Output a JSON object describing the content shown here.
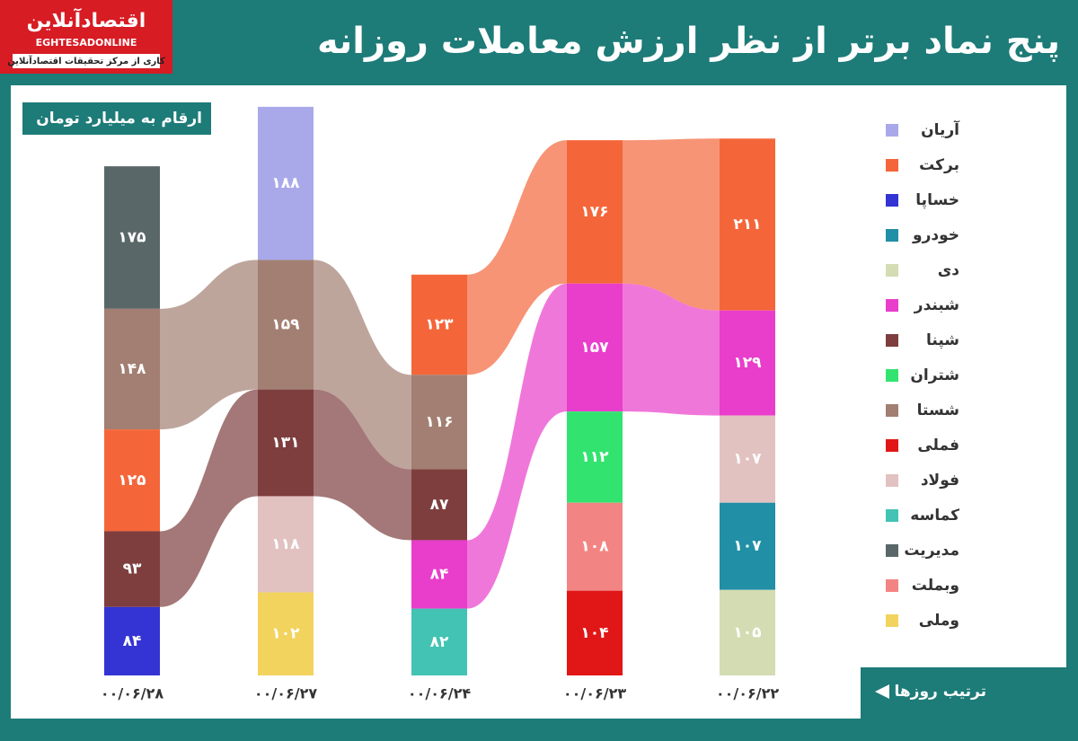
{
  "chart_data": {
    "type": "stacked-flow",
    "title": "پنج نماد برتر از نظر ارزش معاملات روزانه",
    "subtitle": "ارقام به میلیارد تومان",
    "logo": {
      "name": "اقتصادآنلاین",
      "latin": "EGHTESADONLINE",
      "tagline": "کاری از مرکز تحقیقات اقتصادآنلاین"
    },
    "order_note": "ترتیب روزها",
    "legend": [
      {
        "name": "آریان",
        "color": "#a9a9ea"
      },
      {
        "name": "برکت",
        "color": "#f4663a"
      },
      {
        "name": "خساپا",
        "color": "#3434d4"
      },
      {
        "name": "خودرو",
        "color": "#218fa6"
      },
      {
        "name": "دی",
        "color": "#d3dcb2"
      },
      {
        "name": "شبندر",
        "color": "#e93dcb"
      },
      {
        "name": "شپنا",
        "color": "#7e3e3e"
      },
      {
        "name": "شتران",
        "color": "#33e36f"
      },
      {
        "name": "شستا",
        "color": "#a27f72"
      },
      {
        "name": "فملی",
        "color": "#e11616"
      },
      {
        "name": "فولاد",
        "color": "#e1c2c0"
      },
      {
        "name": "کماسه",
        "color": "#42c3b3"
      },
      {
        "name": "مدیریت",
        "color": "#5a6769"
      },
      {
        "name": "وبملت",
        "color": "#f38484"
      },
      {
        "name": "وملی",
        "color": "#f2d35e"
      }
    ],
    "columns": [
      {
        "date": "۰۰/۰۶/۲۸",
        "segments": [
          {
            "name": "مدیریت",
            "value": 175,
            "value_label": "۱۷۵"
          },
          {
            "name": "شستا",
            "value": 148,
            "value_label": "۱۴۸"
          },
          {
            "name": "برکت",
            "value": 125,
            "value_label": "۱۲۵"
          },
          {
            "name": "شپنا",
            "value": 93,
            "value_label": "۹۳"
          },
          {
            "name": "خساپا",
            "value": 84,
            "value_label": "۸۴"
          }
        ]
      },
      {
        "date": "۰۰/۰۶/۲۷",
        "segments": [
          {
            "name": "آریان",
            "value": 188,
            "value_label": "۱۸۸"
          },
          {
            "name": "شستا",
            "value": 159,
            "value_label": "۱۵۹"
          },
          {
            "name": "شپنا",
            "value": 131,
            "value_label": "۱۳۱"
          },
          {
            "name": "فولاد",
            "value": 118,
            "value_label": "۱۱۸"
          },
          {
            "name": "وملی",
            "value": 102,
            "value_label": "۱۰۲"
          }
        ]
      },
      {
        "date": "۰۰/۰۶/۲۴",
        "segments": [
          {
            "name": "برکت",
            "value": 123,
            "value_label": "۱۲۳"
          },
          {
            "name": "شستا",
            "value": 116,
            "value_label": "۱۱۶"
          },
          {
            "name": "شپنا",
            "value": 87,
            "value_label": "۸۷"
          },
          {
            "name": "شبندر",
            "value": 84,
            "value_label": "۸۴"
          },
          {
            "name": "کماسه",
            "value": 82,
            "value_label": "۸۲"
          }
        ]
      },
      {
        "date": "۰۰/۰۶/۲۳",
        "segments": [
          {
            "name": "برکت",
            "value": 176,
            "value_label": "۱۷۶"
          },
          {
            "name": "شبندر",
            "value": 157,
            "value_label": "۱۵۷"
          },
          {
            "name": "شتران",
            "value": 112,
            "value_label": "۱۱۲"
          },
          {
            "name": "وبملت",
            "value": 108,
            "value_label": "۱۰۸"
          },
          {
            "name": "فملی",
            "value": 104,
            "value_label": "۱۰۴"
          }
        ]
      },
      {
        "date": "۰۰/۰۶/۲۲",
        "segments": [
          {
            "name": "برکت",
            "value": 211,
            "value_label": "۲۱۱"
          },
          {
            "name": "شبندر",
            "value": 129,
            "value_label": "۱۲۹"
          },
          {
            "name": "فولاد",
            "value": 107,
            "value_label": "۱۰۷"
          },
          {
            "name": "خودرو",
            "value": 107,
            "value_label": "۱۰۷"
          },
          {
            "name": "دی",
            "value": 105,
            "value_label": "۱۰۵"
          }
        ]
      }
    ]
  }
}
